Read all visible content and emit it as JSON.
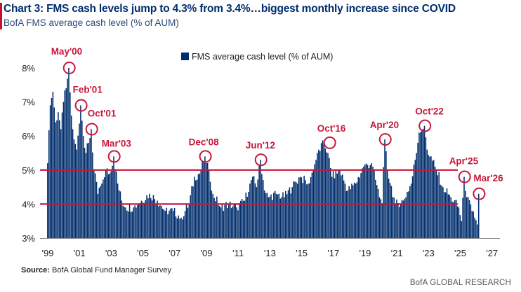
{
  "header": {
    "title": "Chart 3: FMS cash levels jump to 4.3% from 3.4%…biggest monthly increase since COVID",
    "subtitle": "BofA FMS average cash level (% of AUM)"
  },
  "footer": {
    "source_label": "Source:",
    "source_text": "BofA Global Fund Manager Survey",
    "brand": "BofA GLOBAL RESEARCH"
  },
  "colors": {
    "bars": "#002e6d",
    "reference_lines": "#c8173a",
    "annotations": "#c8173a",
    "title": "#002e6d"
  },
  "chart_data": {
    "type": "bar",
    "legend": "FMS average cash level (% of AUM)",
    "legend_position": "top-center",
    "ylim": [
      3,
      8.5
    ],
    "xlim": [
      1999,
      2027.5
    ],
    "y_ticks": [
      "3%",
      "4%",
      "5%",
      "6%",
      "7%",
      "8%"
    ],
    "x_ticks": [
      "'99",
      "'01",
      "'03",
      "'05",
      "'07",
      "'09",
      "'11",
      "'13",
      "'15",
      "'17",
      "'19",
      "'21",
      "'23",
      "'25",
      "'27"
    ],
    "reference_lines": [
      5.0,
      4.0
    ],
    "grid": false,
    "series": [
      {
        "name": "FMS average cash level (% of AUM)",
        "frequency": "monthly",
        "start": "1999-01",
        "end": "2026-03",
        "anchors": [
          [
            "1999-01",
            5.2
          ],
          [
            "1999-03",
            6.9
          ],
          [
            "1999-05",
            7.3
          ],
          [
            "1999-07",
            6.4
          ],
          [
            "1999-09",
            6.7
          ],
          [
            "1999-11",
            6.2
          ],
          [
            "2000-01",
            7.0
          ],
          [
            "2000-03",
            7.4
          ],
          [
            "2000-05",
            8.0
          ],
          [
            "2000-07",
            6.6
          ],
          [
            "2000-09",
            5.9
          ],
          [
            "2000-11",
            5.6
          ],
          [
            "2001-02",
            6.9
          ],
          [
            "2001-04",
            6.0
          ],
          [
            "2001-06",
            5.5
          ],
          [
            "2001-08",
            5.8
          ],
          [
            "2001-10",
            6.2
          ],
          [
            "2001-12",
            5.0
          ],
          [
            "2002-03",
            4.3
          ],
          [
            "2002-06",
            4.6
          ],
          [
            "2002-09",
            5.0
          ],
          [
            "2002-12",
            4.9
          ],
          [
            "2003-03",
            5.4
          ],
          [
            "2003-06",
            4.6
          ],
          [
            "2003-09",
            4.1
          ],
          [
            "2003-12",
            3.9
          ],
          [
            "2004-06",
            3.9
          ],
          [
            "2004-12",
            4.1
          ],
          [
            "2005-06",
            4.3
          ],
          [
            "2005-12",
            4.1
          ],
          [
            "2006-06",
            3.8
          ],
          [
            "2006-12",
            3.8
          ],
          [
            "2007-06",
            3.6
          ],
          [
            "2007-12",
            4.0
          ],
          [
            "2008-04",
            4.8
          ],
          [
            "2008-08",
            4.9
          ],
          [
            "2008-12",
            5.4
          ],
          [
            "2009-03",
            5.0
          ],
          [
            "2009-06",
            4.3
          ],
          [
            "2009-12",
            3.9
          ],
          [
            "2010-06",
            4.0
          ],
          [
            "2010-12",
            3.9
          ],
          [
            "2011-06",
            4.1
          ],
          [
            "2011-10",
            4.6
          ],
          [
            "2011-12",
            4.8
          ],
          [
            "2012-03",
            4.5
          ],
          [
            "2012-06",
            5.3
          ],
          [
            "2012-09",
            4.4
          ],
          [
            "2012-12",
            4.2
          ],
          [
            "2013-06",
            4.3
          ],
          [
            "2013-12",
            4.2
          ],
          [
            "2014-06",
            4.5
          ],
          [
            "2014-12",
            4.8
          ],
          [
            "2015-06",
            4.6
          ],
          [
            "2015-10",
            5.0
          ],
          [
            "2016-01",
            5.5
          ],
          [
            "2016-06",
            5.8
          ],
          [
            "2016-09",
            5.5
          ],
          [
            "2016-12",
            4.8
          ],
          [
            "2017-06",
            5.0
          ],
          [
            "2017-12",
            4.4
          ],
          [
            "2018-06",
            4.6
          ],
          [
            "2018-12",
            5.1
          ],
          [
            "2019-06",
            5.2
          ],
          [
            "2019-12",
            4.2
          ],
          [
            "2020-02",
            4.0
          ],
          [
            "2020-04",
            5.9
          ],
          [
            "2020-06",
            5.0
          ],
          [
            "2020-12",
            4.0
          ],
          [
            "2021-06",
            4.1
          ],
          [
            "2021-12",
            4.6
          ],
          [
            "2022-03",
            5.3
          ],
          [
            "2022-06",
            6.1
          ],
          [
            "2022-10",
            6.3
          ],
          [
            "2022-12",
            5.6
          ],
          [
            "2023-06",
            5.1
          ],
          [
            "2023-12",
            4.5
          ],
          [
            "2024-06",
            4.2
          ],
          [
            "2024-12",
            3.9
          ],
          [
            "2025-02",
            3.5
          ],
          [
            "2025-04",
            4.8
          ],
          [
            "2025-06",
            4.2
          ],
          [
            "2025-10",
            3.8
          ],
          [
            "2025-12",
            3.6
          ],
          [
            "2026-02",
            3.4
          ],
          [
            "2026-03",
            4.3
          ]
        ]
      }
    ],
    "annotations": [
      {
        "label": "May'00",
        "date": "2000-05",
        "value": 8.0
      },
      {
        "label": "Feb'01",
        "date": "2001-02",
        "value": 6.9
      },
      {
        "label": "Oct'01",
        "date": "2001-10",
        "value": 6.2
      },
      {
        "label": "Mar'03",
        "date": "2003-03",
        "value": 5.4
      },
      {
        "label": "Dec'08",
        "date": "2008-12",
        "value": 5.4
      },
      {
        "label": "Jun'12",
        "date": "2012-06",
        "value": 5.3
      },
      {
        "label": "Oct'16",
        "date": "2016-10",
        "value": 5.8
      },
      {
        "label": "Apr'20",
        "date": "2020-04",
        "value": 5.9
      },
      {
        "label": "Oct'22",
        "date": "2022-10",
        "value": 6.3
      },
      {
        "label": "Apr'25",
        "date": "2025-04",
        "value": 4.8
      },
      {
        "label": "Mar'26",
        "date": "2026-03",
        "value": 4.3
      }
    ]
  }
}
